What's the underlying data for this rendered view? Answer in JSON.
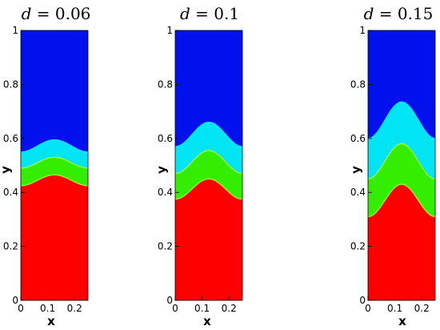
{
  "chart_data": [
    {
      "type": "heatmap",
      "title_var": "d",
      "title_value": "= 0.06",
      "xlabel": "x",
      "ylabel": "y",
      "xlim": [
        0,
        0.25
      ],
      "ylim": [
        0,
        1
      ],
      "x_ticks": [
        "0",
        "0.1",
        "0.2"
      ],
      "y_ticks": [
        "0",
        "0.2",
        "0.4",
        "0.6",
        "0.8",
        "1"
      ],
      "y_tick_values": [
        0,
        0.2,
        0.4,
        0.6,
        0.8,
        1
      ],
      "x_tick_values": [
        0,
        0.1,
        0.2
      ],
      "interfaces": [
        {
          "name": "red-green",
          "crest_y": 0.465,
          "trough_y": 0.425
        },
        {
          "name": "green-cyan",
          "crest_y": 0.53,
          "trough_y": 0.49
        },
        {
          "name": "cyan-blue",
          "crest_y": 0.595,
          "trough_y": 0.55
        }
      ]
    },
    {
      "type": "heatmap",
      "title_var": "d",
      "title_value": "= 0.1",
      "xlabel": "x",
      "ylabel": "y",
      "xlim": [
        0,
        0.25
      ],
      "ylim": [
        0,
        1
      ],
      "x_ticks": [
        "0",
        "0.1",
        "0.2"
      ],
      "y_ticks": [
        "0",
        "0.2",
        "0.4",
        "0.6",
        "0.8",
        "1"
      ],
      "y_tick_values": [
        0,
        0.2,
        0.4,
        0.6,
        0.8,
        1
      ],
      "x_tick_values": [
        0,
        0.1,
        0.2
      ],
      "interfaces": [
        {
          "name": "red-green",
          "crest_y": 0.45,
          "trough_y": 0.375
        },
        {
          "name": "green-cyan",
          "crest_y": 0.555,
          "trough_y": 0.47
        },
        {
          "name": "cyan-blue",
          "crest_y": 0.66,
          "trough_y": 0.57
        }
      ]
    },
    {
      "type": "heatmap",
      "title_var": "d",
      "title_value": "= 0.15",
      "xlabel": "x",
      "ylabel": "y",
      "xlim": [
        0,
        0.25
      ],
      "ylim": [
        0,
        1
      ],
      "x_ticks": [
        "0",
        "0.1",
        "0.2"
      ],
      "y_ticks": [
        "0",
        "0.2",
        "0.4",
        "0.6",
        "0.8",
        "1"
      ],
      "y_tick_values": [
        0,
        0.2,
        0.4,
        0.6,
        0.8,
        1
      ],
      "x_tick_values": [
        0,
        0.1,
        0.2
      ],
      "interfaces": [
        {
          "name": "red-green",
          "crest_y": 0.43,
          "trough_y": 0.31
        },
        {
          "name": "green-cyan",
          "crest_y": 0.58,
          "trough_y": 0.45
        },
        {
          "name": "cyan-blue",
          "crest_y": 0.735,
          "trough_y": 0.6
        }
      ]
    }
  ],
  "colors": {
    "red": "#ff0000",
    "green": "#33ee00",
    "cyan": "#00e4f4",
    "blue": "#0011ee",
    "interface_green": "#b4ff30",
    "interface_cyan": "#00f0ff"
  }
}
